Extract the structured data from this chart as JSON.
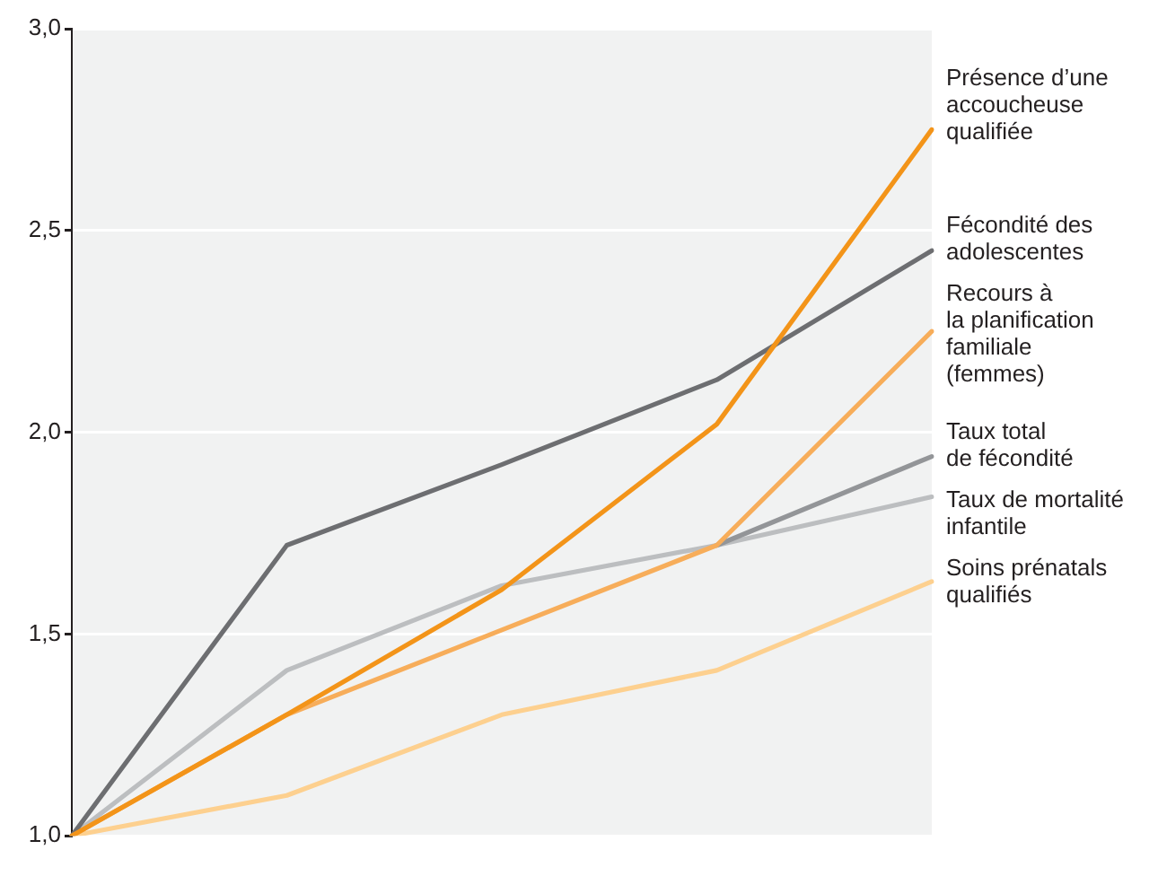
{
  "chart_data": {
    "type": "line",
    "categories": [
      null,
      null,
      null,
      null,
      null
    ],
    "series": [
      {
        "name": "Présence d’une\naccoucheuse\nqualifiée",
        "color": "#f39419",
        "values": [
          1.0,
          1.3,
          1.61,
          2.02,
          2.75
        ]
      },
      {
        "name": "Fécondité des\nadolescentes",
        "color": "#6d6e71",
        "values": [
          1.0,
          1.72,
          1.92,
          2.13,
          2.45
        ]
      },
      {
        "name": "Recours à\nla planification\nfamiliale\n(femmes)",
        "color": "#f7ad5a",
        "values": [
          1.0,
          1.3,
          1.51,
          1.72,
          2.25
        ]
      },
      {
        "name": "Taux total\nde fécondité",
        "color": "#939598",
        "values": [
          null,
          null,
          null,
          1.72,
          1.94
        ]
      },
      {
        "name": "Taux de mortalité\ninfantile",
        "color": "#bcbec0",
        "values": [
          1.0,
          1.41,
          1.62,
          1.72,
          1.84
        ]
      },
      {
        "name": "Soins prénatals\nqualifiés",
        "color": "#fdd08f",
        "values": [
          1.0,
          1.1,
          1.3,
          1.41,
          1.63
        ]
      }
    ],
    "ylim": [
      1,
      3
    ],
    "yticks": [
      {
        "value": 1,
        "label": "1,0"
      },
      {
        "value": 1.5,
        "label": "1,5"
      },
      {
        "value": 2,
        "label": "2,0"
      },
      {
        "value": 2.5,
        "label": "2,5"
      },
      {
        "value": 3,
        "label": "3,0"
      }
    ],
    "grid": "y",
    "legend": false,
    "marker": "none",
    "line_style": "solid"
  }
}
